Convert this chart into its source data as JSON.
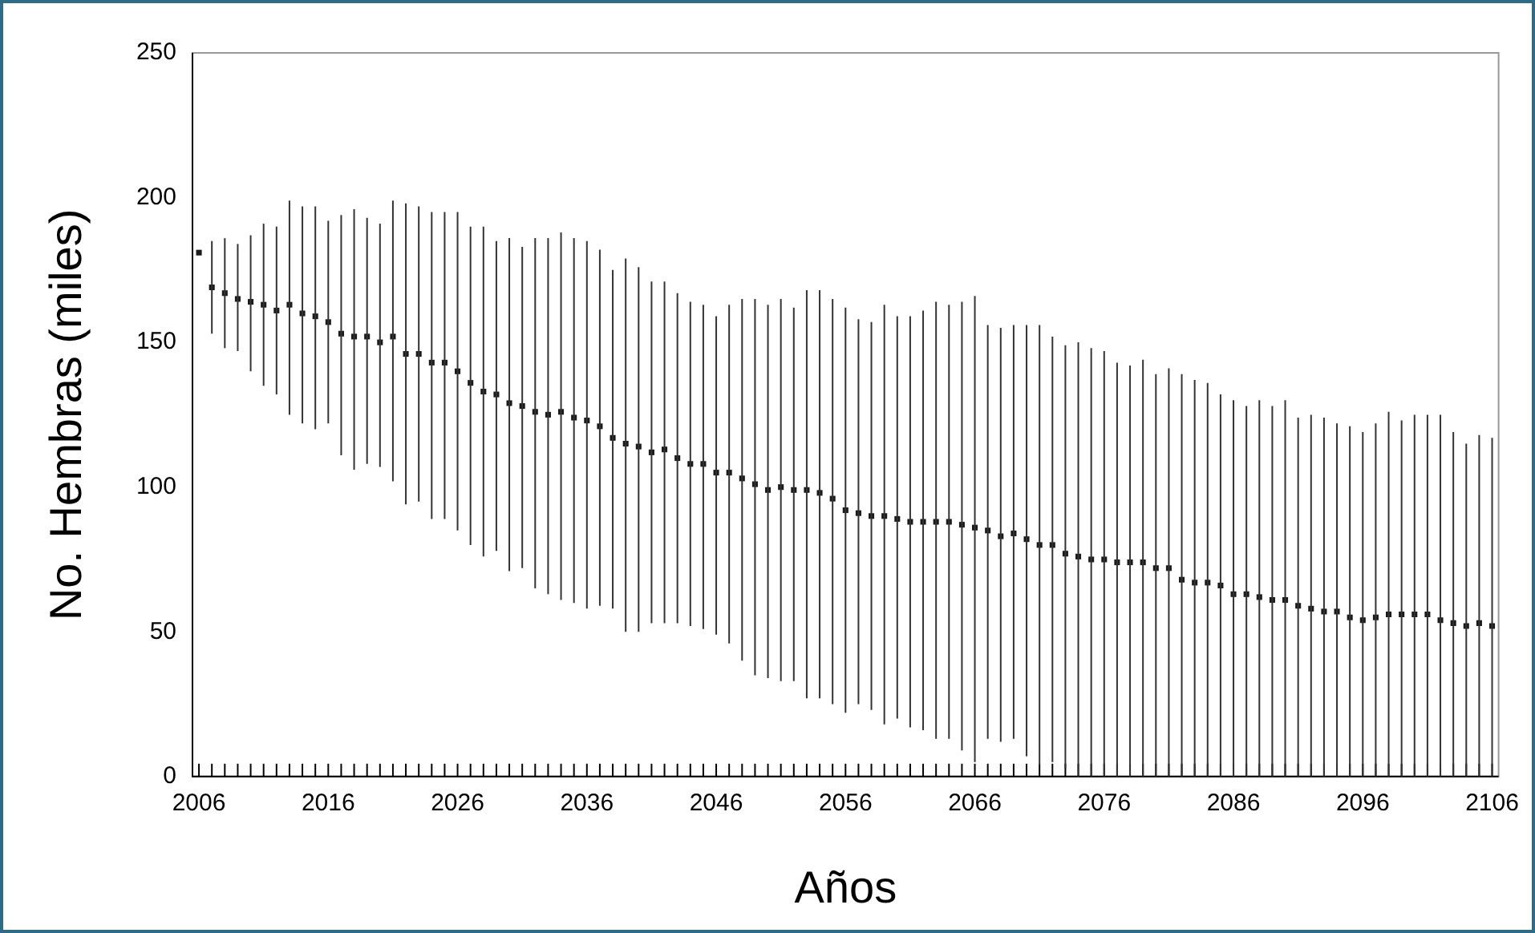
{
  "chart_data": {
    "type": "scatter",
    "xlabel": "Años",
    "ylabel": "No. Hembras (miles)",
    "categories": [
      "2006",
      null,
      null,
      null,
      null,
      null,
      null,
      null,
      null,
      null,
      "2016",
      null,
      null,
      null,
      null,
      null,
      null,
      null,
      null,
      null,
      "2026",
      null,
      null,
      null,
      null,
      null,
      null,
      null,
      null,
      null,
      "2036",
      null,
      null,
      null,
      null,
      null,
      null,
      null,
      null,
      null,
      "2046",
      null,
      null,
      null,
      null,
      null,
      null,
      null,
      null,
      null,
      "2056",
      null,
      null,
      null,
      null,
      null,
      null,
      null,
      null,
      null,
      "2066",
      null,
      null,
      null,
      null,
      null,
      null,
      null,
      null,
      null,
      "2076",
      null,
      null,
      null,
      null,
      null,
      null,
      null,
      null,
      null,
      "2086",
      null,
      null,
      null,
      null,
      null,
      null,
      null,
      null,
      null,
      "2096",
      null,
      null,
      null,
      null,
      null,
      null,
      null,
      null,
      null,
      "2106"
    ],
    "values": [
      181,
      169,
      167,
      165,
      164,
      163,
      161,
      163,
      160,
      159,
      157,
      153,
      152,
      152,
      150,
      152,
      146,
      146,
      143,
      143,
      140,
      136,
      133,
      132,
      129,
      128,
      126,
      125,
      126,
      124,
      123,
      121,
      117,
      115,
      114,
      112,
      113,
      110,
      108,
      108,
      105,
      105,
      103,
      101,
      99,
      100,
      99,
      99,
      98,
      96,
      92,
      91,
      90,
      90,
      89,
      88,
      88,
      88,
      88,
      87,
      86,
      85,
      83,
      84,
      82,
      80,
      80,
      77,
      76,
      75,
      75,
      74,
      74,
      74,
      72,
      72,
      68,
      67,
      67,
      66,
      63,
      63,
      62,
      61,
      61,
      59,
      58,
      57,
      57,
      55,
      54,
      55,
      56,
      56,
      56,
      56,
      54,
      53,
      52,
      53,
      52
    ],
    "errors": [
      null,
      [
        153,
        185
      ],
      [
        148,
        186
      ],
      [
        147,
        184
      ],
      [
        140,
        187
      ],
      [
        135,
        191
      ],
      [
        132,
        190
      ],
      [
        125,
        199
      ],
      [
        122,
        197
      ],
      [
        120,
        197
      ],
      [
        122,
        192
      ],
      [
        111,
        194
      ],
      [
        106,
        196
      ],
      [
        108,
        193
      ],
      [
        107,
        191
      ],
      [
        102,
        199
      ],
      [
        94,
        198
      ],
      [
        95,
        197
      ],
      [
        89,
        195
      ],
      [
        89,
        195
      ],
      [
        85,
        195
      ],
      [
        80,
        190
      ],
      [
        76,
        190
      ],
      [
        78,
        185
      ],
      [
        71,
        186
      ],
      [
        72,
        183
      ],
      [
        65,
        186
      ],
      [
        63,
        186
      ],
      [
        61,
        188
      ],
      [
        60,
        186
      ],
      [
        58,
        185
      ],
      [
        59,
        182
      ],
      [
        58,
        175
      ],
      [
        50,
        179
      ],
      [
        50,
        176
      ],
      [
        53,
        171
      ],
      [
        53,
        171
      ],
      [
        53,
        167
      ],
      [
        52,
        164
      ],
      [
        51,
        163
      ],
      [
        49,
        159
      ],
      [
        46,
        163
      ],
      [
        40,
        165
      ],
      [
        35,
        165
      ],
      [
        34,
        163
      ],
      [
        33,
        165
      ],
      [
        33,
        162
      ],
      [
        27,
        168
      ],
      [
        27,
        168
      ],
      [
        25,
        165
      ],
      [
        22,
        162
      ],
      [
        25,
        158
      ],
      [
        23,
        157
      ],
      [
        18,
        163
      ],
      [
        20,
        159
      ],
      [
        17,
        159
      ],
      [
        16,
        161
      ],
      [
        13,
        164
      ],
      [
        13,
        163
      ],
      [
        9,
        164
      ],
      [
        5,
        166
      ],
      [
        13,
        156
      ],
      [
        12,
        155
      ],
      [
        13,
        156
      ],
      [
        7,
        156
      ],
      [
        4,
        156
      ],
      [
        5,
        152
      ],
      [
        3,
        149
      ],
      [
        0,
        150
      ],
      [
        0,
        148
      ],
      [
        0,
        147
      ],
      [
        0,
        143
      ],
      [
        0,
        142
      ],
      [
        0,
        144
      ],
      [
        0,
        139
      ],
      [
        0,
        141
      ],
      [
        0,
        139
      ],
      [
        0,
        137
      ],
      [
        0,
        136
      ],
      [
        0,
        132
      ],
      [
        0,
        130
      ],
      [
        0,
        128
      ],
      [
        0,
        130
      ],
      [
        0,
        128
      ],
      [
        0,
        130
      ],
      [
        0,
        124
      ],
      [
        0,
        125
      ],
      [
        0,
        124
      ],
      [
        0,
        122
      ],
      [
        0,
        121
      ],
      [
        0,
        119
      ],
      [
        0,
        122
      ],
      [
        0,
        126
      ],
      [
        0,
        123
      ],
      [
        0,
        125
      ],
      [
        0,
        125
      ],
      [
        0,
        125
      ],
      [
        0,
        119
      ],
      [
        0,
        115
      ],
      [
        0,
        118
      ],
      [
        0,
        117
      ]
    ],
    "color": "#1a1a1a",
    "marker": "square",
    "ylim": [
      0,
      250
    ],
    "yticks": [
      0,
      50,
      100,
      150,
      200,
      250
    ]
  }
}
